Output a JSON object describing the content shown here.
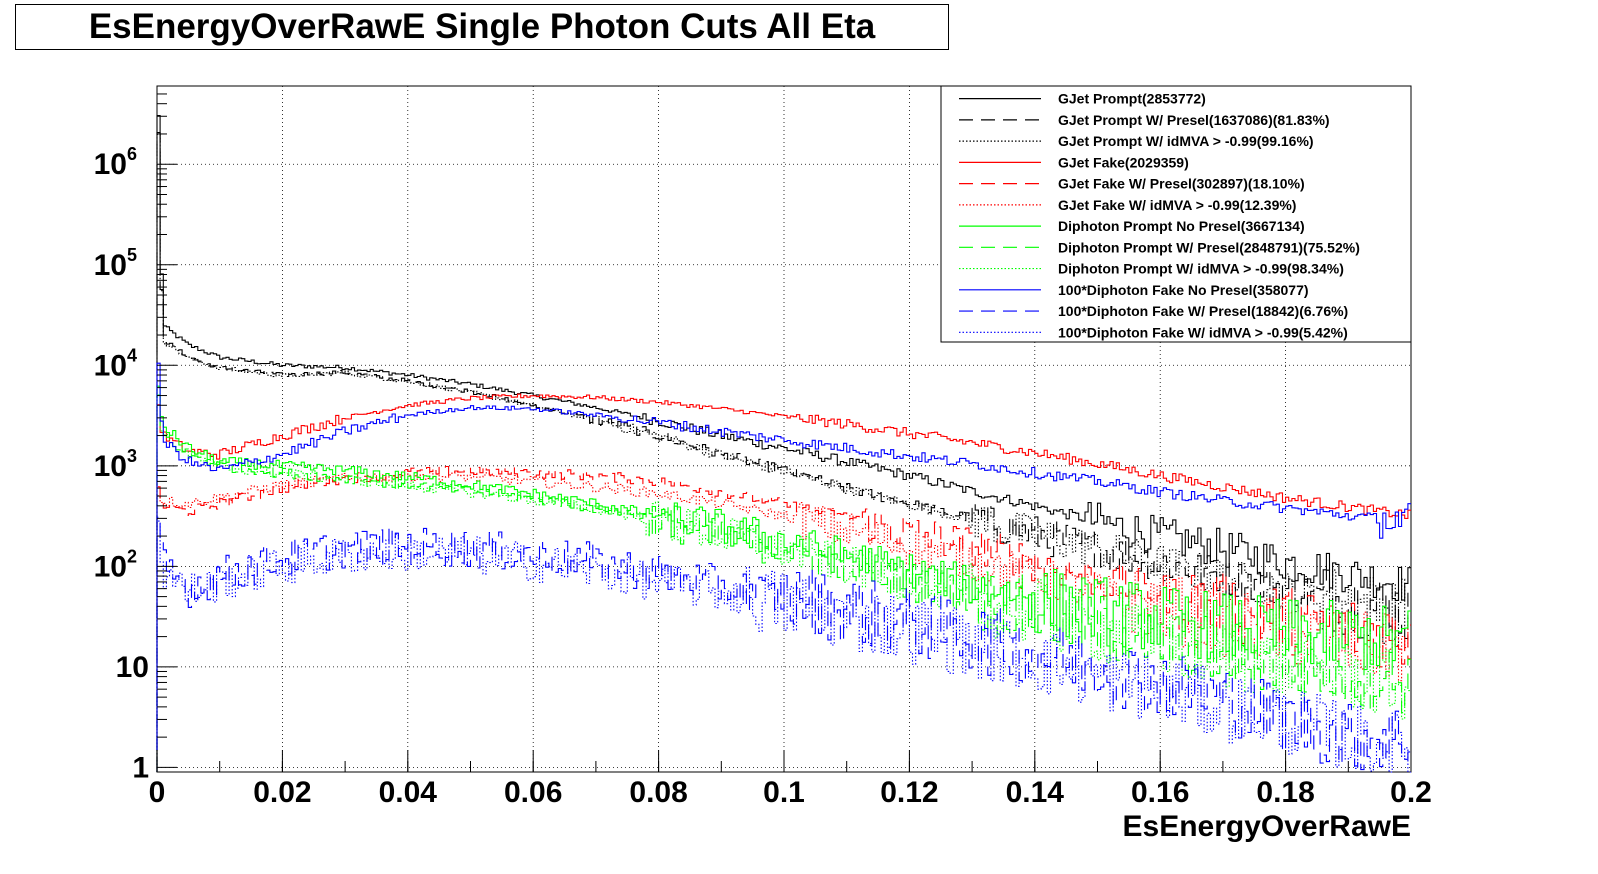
{
  "chart_data": {
    "type": "line",
    "title": "EsEnergyOverRawE Single Photon Cuts All Eta",
    "xlabel": "EsEnergyOverRawE",
    "ylabel": "",
    "xlim": [
      0,
      0.2
    ],
    "ylim": [
      0.9,
      6000000
    ],
    "yscale": "log",
    "grid": true,
    "legend_position": "top-right",
    "x_ticks": [
      {
        "value": 0,
        "label": "0"
      },
      {
        "value": 0.02,
        "label": "0.02"
      },
      {
        "value": 0.04,
        "label": "0.04"
      },
      {
        "value": 0.06,
        "label": "0.06"
      },
      {
        "value": 0.08,
        "label": "0.08"
      },
      {
        "value": 0.1,
        "label": "0.1"
      },
      {
        "value": 0.12,
        "label": "0.12"
      },
      {
        "value": 0.14,
        "label": "0.14"
      },
      {
        "value": 0.16,
        "label": "0.16"
      },
      {
        "value": 0.18,
        "label": "0.18"
      },
      {
        "value": 0.2,
        "label": "0.2"
      }
    ],
    "y_ticks": [
      {
        "value": 1,
        "base": "1",
        "exp": ""
      },
      {
        "value": 10,
        "base": "10",
        "exp": ""
      },
      {
        "value": 100,
        "base": "10",
        "exp": "2"
      },
      {
        "value": 1000,
        "base": "10",
        "exp": "3"
      },
      {
        "value": 10000,
        "base": "10",
        "exp": "4"
      },
      {
        "value": 100000,
        "base": "10",
        "exp": "5"
      },
      {
        "value": 1000000,
        "base": "10",
        "exp": "6"
      }
    ],
    "series": [
      {
        "name": "GJet Prompt(2853772)",
        "color": "#000000",
        "style": "solid",
        "x": [
          0,
          0.001,
          0.005,
          0.01,
          0.02,
          0.03,
          0.04,
          0.05,
          0.06,
          0.07,
          0.08,
          0.09,
          0.1,
          0.11,
          0.12,
          0.13,
          0.14,
          0.15,
          0.16,
          0.17,
          0.18,
          0.19,
          0.2
        ],
        "y": [
          3000000,
          25000,
          16000,
          12000,
          10000,
          9500,
          8000,
          6500,
          5000,
          3800,
          2800,
          2000,
          1500,
          1100,
          800,
          560,
          400,
          280,
          200,
          150,
          110,
          85,
          65
        ]
      },
      {
        "name": "GJet Prompt W/ Presel(1637086)(81.83%)",
        "color": "#000000",
        "style": "dashed",
        "x": [
          0,
          0.001,
          0.005,
          0.01,
          0.02,
          0.03,
          0.04,
          0.05,
          0.06,
          0.07,
          0.08,
          0.09,
          0.1,
          0.11,
          0.12,
          0.13,
          0.14,
          0.15,
          0.16,
          0.17,
          0.18,
          0.19,
          0.2
        ],
        "y": [
          2000000,
          18000,
          12000,
          9500,
          8000,
          8500,
          7000,
          5500,
          4000,
          2900,
          2000,
          1300,
          900,
          600,
          420,
          300,
          210,
          150,
          110,
          80,
          60,
          45,
          35
        ]
      },
      {
        "name": "GJet Prompt W/ idMVA > -0.99(99.16%)",
        "color": "#000000",
        "style": "dotted",
        "x": [
          0,
          0.001,
          0.005,
          0.01,
          0.02,
          0.03,
          0.04,
          0.05,
          0.06,
          0.07,
          0.08,
          0.09,
          0.1,
          0.11,
          0.12,
          0.13,
          0.14,
          0.15,
          0.16,
          0.17,
          0.18,
          0.19,
          0.2
        ],
        "y": [
          1900000,
          17500,
          11800,
          9400,
          7900,
          8400,
          6900,
          5400,
          3950,
          2850,
          1980,
          1280,
          890,
          595,
          415,
          295,
          205,
          148,
          108,
          78,
          58,
          44,
          34
        ]
      },
      {
        "name": "GJet Fake(2029359)",
        "color": "#ff0000",
        "style": "solid",
        "x": [
          0,
          0.001,
          0.005,
          0.01,
          0.02,
          0.03,
          0.04,
          0.05,
          0.06,
          0.07,
          0.08,
          0.09,
          0.1,
          0.11,
          0.12,
          0.13,
          0.14,
          0.15,
          0.16,
          0.17,
          0.18,
          0.19,
          0.2
        ],
        "y": [
          4000,
          2000,
          1400,
          1300,
          2000,
          3000,
          4000,
          4700,
          5000,
          4800,
          4300,
          3700,
          3100,
          2600,
          2100,
          1700,
          1350,
          1050,
          800,
          620,
          480,
          390,
          320
        ]
      },
      {
        "name": "GJet Fake W/ Presel(302897)(18.10%)",
        "color": "#ff0000",
        "style": "dashed",
        "x": [
          0,
          0.001,
          0.005,
          0.01,
          0.02,
          0.03,
          0.04,
          0.05,
          0.06,
          0.07,
          0.08,
          0.09,
          0.1,
          0.11,
          0.12,
          0.13,
          0.14,
          0.15,
          0.16,
          0.17,
          0.18,
          0.19,
          0.2
        ],
        "y": [
          600,
          400,
          350,
          420,
          600,
          750,
          850,
          900,
          850,
          800,
          700,
          550,
          420,
          310,
          220,
          160,
          110,
          75,
          55,
          40,
          30,
          24,
          20
        ]
      },
      {
        "name": "GJet Fake W/ idMVA > -0.99(12.39%)",
        "color": "#ff0000",
        "style": "dotted",
        "x": [
          0,
          0.001,
          0.005,
          0.01,
          0.02,
          0.03,
          0.04,
          0.05,
          0.06,
          0.07,
          0.08,
          0.09,
          0.1,
          0.11,
          0.12,
          0.13,
          0.14,
          0.15,
          0.16,
          0.17,
          0.18,
          0.19,
          0.2
        ],
        "y": [
          500,
          450,
          420,
          480,
          650,
          750,
          800,
          780,
          700,
          620,
          530,
          420,
          320,
          230,
          160,
          115,
          80,
          55,
          40,
          28,
          22,
          17,
          14
        ]
      },
      {
        "name": "Diphoton Prompt No Presel(3667134)",
        "color": "#00ff00",
        "style": "solid",
        "x": [
          0,
          0.001,
          0.005,
          0.01,
          0.02,
          0.03,
          0.04,
          0.05,
          0.06,
          0.07,
          0.08,
          0.09,
          0.1,
          0.11,
          0.12,
          0.13,
          0.14,
          0.15,
          0.16,
          0.17,
          0.18,
          0.19,
          0.2
        ],
        "y": [
          6000,
          2500,
          1500,
          1100,
          1000,
          900,
          780,
          650,
          530,
          420,
          320,
          240,
          175,
          125,
          90,
          65,
          48,
          37,
          30,
          25,
          22,
          20,
          18
        ]
      },
      {
        "name": "Diphoton Prompt W/ Presel(2848791)(75.52%)",
        "color": "#00ff00",
        "style": "dashed",
        "x": [
          0,
          0.001,
          0.005,
          0.01,
          0.02,
          0.03,
          0.04,
          0.05,
          0.06,
          0.07,
          0.08,
          0.09,
          0.1,
          0.11,
          0.12,
          0.13,
          0.14,
          0.15,
          0.16,
          0.17,
          0.18,
          0.19,
          0.2
        ],
        "y": [
          5000,
          2000,
          1300,
          1000,
          850,
          750,
          650,
          560,
          470,
          380,
          290,
          210,
          150,
          105,
          72,
          50,
          35,
          25,
          18,
          14,
          11,
          9,
          7
        ]
      },
      {
        "name": "Diphoton Prompt W/ idMVA > -0.99(98.34%)",
        "color": "#00ff00",
        "style": "dotted",
        "x": [
          0,
          0.001,
          0.005,
          0.01,
          0.02,
          0.03,
          0.04,
          0.05,
          0.06,
          0.07,
          0.08,
          0.09,
          0.1,
          0.11,
          0.12,
          0.13,
          0.14,
          0.15,
          0.16,
          0.17,
          0.18,
          0.19,
          0.2
        ],
        "y": [
          4900,
          1980,
          1290,
          990,
          840,
          740,
          640,
          550,
          460,
          375,
          285,
          205,
          147,
          103,
          70,
          49,
          34,
          24,
          17,
          13,
          10,
          8,
          6
        ]
      },
      {
        "name": "100*Diphoton Fake No Presel(358077)",
        "color": "#0000ff",
        "style": "solid",
        "x": [
          0,
          0.001,
          0.005,
          0.01,
          0.02,
          0.03,
          0.04,
          0.05,
          0.06,
          0.07,
          0.08,
          0.09,
          0.1,
          0.11,
          0.12,
          0.13,
          0.14,
          0.15,
          0.16,
          0.17,
          0.18,
          0.19,
          0.2
        ],
        "y": [
          10000,
          1800,
          1100,
          900,
          1300,
          2200,
          3200,
          3800,
          3700,
          3200,
          2700,
          2200,
          1800,
          1500,
          1250,
          1050,
          850,
          700,
          550,
          450,
          380,
          320,
          280
        ]
      },
      {
        "name": "100*Diphoton Fake W/ Presel(18842)(6.76%)",
        "color": "#0000ff",
        "style": "dashed",
        "x": [
          0,
          0.001,
          0.005,
          0.01,
          0.02,
          0.03,
          0.04,
          0.05,
          0.06,
          0.07,
          0.08,
          0.09,
          0.1,
          0.11,
          0.12,
          0.13,
          0.14,
          0.15,
          0.16,
          0.17,
          0.18,
          0.19,
          0.2
        ],
        "y": [
          300,
          100,
          60,
          80,
          120,
          150,
          160,
          150,
          130,
          110,
          85,
          65,
          50,
          38,
          28,
          20,
          14,
          10,
          7,
          5,
          3,
          2,
          2
        ]
      },
      {
        "name": "100*Diphoton Fake W/ idMVA > -0.99(5.42%)",
        "color": "#0000ff",
        "style": "dotted",
        "x": [
          0,
          0.001,
          0.005,
          0.01,
          0.02,
          0.03,
          0.04,
          0.05,
          0.06,
          0.07,
          0.08,
          0.09,
          0.1,
          0.11,
          0.12,
          0.13,
          0.14,
          0.15,
          0.16,
          0.17,
          0.18,
          0.19,
          0.2
        ],
        "y": [
          250,
          90,
          55,
          70,
          100,
          130,
          140,
          130,
          110,
          90,
          70,
          55,
          42,
          32,
          24,
          17,
          12,
          8,
          6,
          4,
          3,
          2,
          1.5
        ]
      }
    ]
  }
}
